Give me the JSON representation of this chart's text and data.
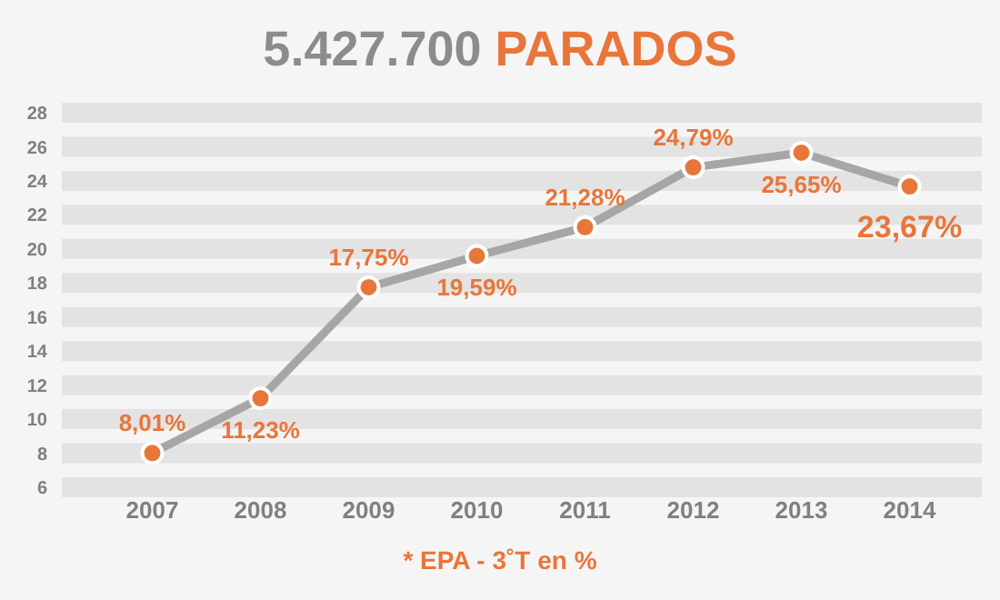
{
  "chart_data": {
    "type": "line",
    "title": "5.427.700 PARADOS",
    "categories": [
      "2007",
      "2008",
      "2009",
      "2010",
      "2011",
      "2012",
      "2013",
      "2014"
    ],
    "series": [
      {
        "color": "#a6a6a6",
        "values": [
          8.01,
          11.23,
          17.75,
          19.59,
          21.28,
          24.79,
          25.65,
          23.67
        ],
        "value_labels": [
          "8,01%",
          "11,23%",
          "17,75%",
          "19,59%",
          "21,28%",
          "24,79%",
          "25,65%",
          "23,67%"
        ]
      }
    ],
    "ylim": [
      6,
      28
    ],
    "yticks": [
      6,
      8,
      10,
      12,
      14,
      16,
      18,
      20,
      22,
      24,
      26,
      28
    ],
    "grid": "y",
    "marker": "circle",
    "line_style": "solid",
    "annotations": [
      "* EPA - 3˚T en %"
    ]
  }
}
